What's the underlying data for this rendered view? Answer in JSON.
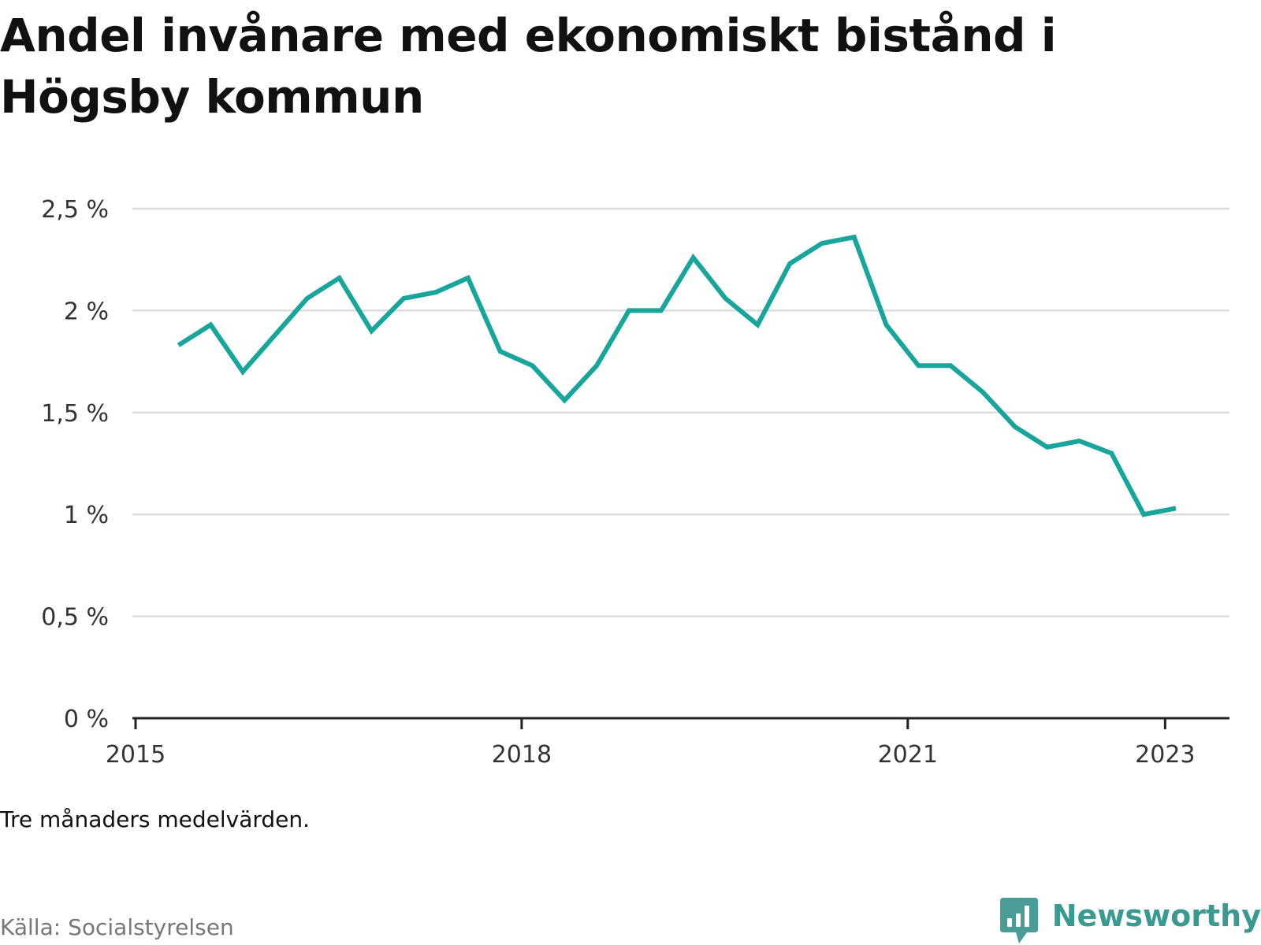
{
  "title": "Andel invånare med ekonomiskt bistånd i Högsby kommun",
  "note": "Tre månaders medelvärden.",
  "source": "Källa: Socialstyrelsen",
  "brand": {
    "name": "Newsworthy",
    "icon": "newsworthy-chart-bubble-icon",
    "color": "#3a9a91"
  },
  "colors": {
    "line": "#17a59c",
    "grid": "#dddddd",
    "axis": "#222222"
  },
  "chart_data": {
    "type": "line",
    "title": "Andel invånare med ekonomiskt bistånd i Högsby kommun",
    "xlabel": "",
    "ylabel": "",
    "ylim": [
      0,
      2.5
    ],
    "xlim": [
      "2015-01",
      "2023-07"
    ],
    "grid": true,
    "legend": "none",
    "y_ticks": [
      {
        "value": 0,
        "label": "0 %"
      },
      {
        "value": 0.5,
        "label": "0,5 %"
      },
      {
        "value": 1,
        "label": "1 %"
      },
      {
        "value": 1.5,
        "label": "1,5 %"
      },
      {
        "value": 2,
        "label": "2 %"
      },
      {
        "value": 2.5,
        "label": "2,5 %"
      }
    ],
    "x_ticks": [
      {
        "value": "2015-01",
        "label": "2015"
      },
      {
        "value": "2018-01",
        "label": "2018"
      },
      {
        "value": "2021-01",
        "label": "2021"
      },
      {
        "value": "2023-01",
        "label": "2023"
      }
    ],
    "series": [
      {
        "x": [
          "2015-05",
          "2015-08",
          "2015-11",
          "2016-02",
          "2016-05",
          "2016-08",
          "2016-11",
          "2017-02",
          "2017-05",
          "2017-08",
          "2017-11",
          "2018-02",
          "2018-05",
          "2018-08",
          "2018-11",
          "2019-02",
          "2019-05",
          "2019-08",
          "2019-11",
          "2020-02",
          "2020-05",
          "2020-08",
          "2020-11",
          "2021-02",
          "2021-05",
          "2021-08",
          "2021-11",
          "2022-02",
          "2022-05",
          "2022-08",
          "2022-11",
          "2023-02"
        ],
        "values": [
          1.83,
          1.93,
          1.7,
          1.88,
          2.06,
          2.16,
          1.9,
          2.06,
          2.09,
          2.16,
          1.8,
          1.73,
          1.56,
          1.73,
          2.0,
          2.0,
          2.26,
          2.06,
          1.93,
          2.23,
          2.33,
          2.36,
          1.93,
          1.73,
          1.73,
          1.6,
          1.43,
          1.33,
          1.36,
          1.3,
          1.0,
          1.03
        ]
      }
    ]
  }
}
